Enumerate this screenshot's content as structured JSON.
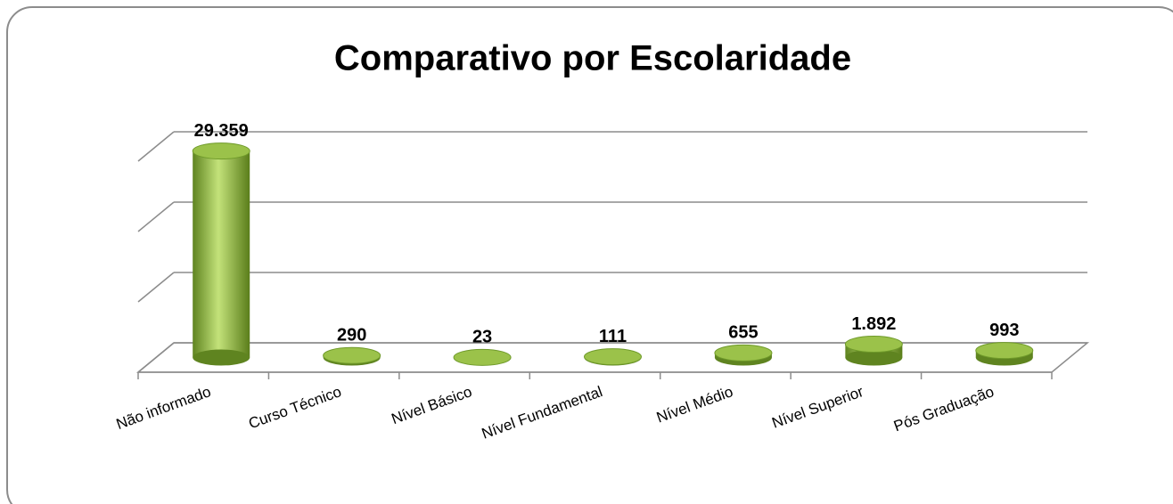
{
  "chart_data": {
    "type": "bar3d",
    "title": "Comparativo por Escolaridade",
    "categories": [
      "Não informado",
      "Curso Técnico",
      "Nível Básico",
      "Nível Fundamental",
      "Nível Médio",
      "Nível Superior",
      "Pós Graduação"
    ],
    "values": [
      29359,
      290,
      23,
      111,
      655,
      1892,
      993
    ],
    "value_labels": [
      "29.359",
      "290",
      "23",
      "111",
      "655",
      "1.892",
      "993"
    ],
    "color": "#9bc24a",
    "ylim": [
      0,
      30000
    ],
    "yticks": [
      0,
      10000,
      20000,
      30000
    ],
    "grid": true
  }
}
